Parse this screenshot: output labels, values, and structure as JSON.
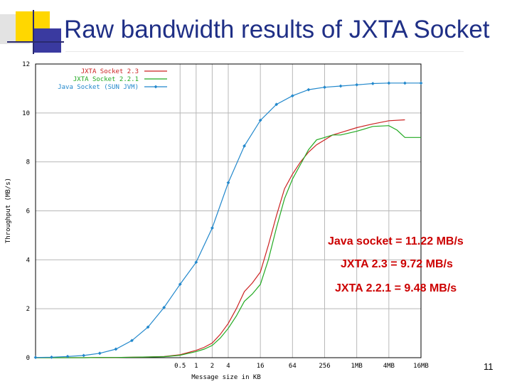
{
  "slide": {
    "title": "Raw bandwidth results of JXTA Socket",
    "page_number": "11"
  },
  "annotations": [
    "Java socket = 11.22 MB/s",
    "JXTA 2.3 = 9.72 MB/s",
    "JXTA 2.2.1 = 9.48 MB/s"
  ],
  "colors": {
    "title": "#1f2f86",
    "annotation": "#cc0000",
    "deco_yellow": "#ffd700",
    "deco_blue": "#3a3aa0",
    "deco_grey": "#d9d9d9"
  },
  "chart_data": {
    "type": "line",
    "xlabel": "Message size in KB",
    "ylabel": "Throughput (MB/s)",
    "ylim": [
      0,
      12
    ],
    "y_ticks": [
      0,
      2,
      4,
      6,
      8,
      10,
      12
    ],
    "x_ticks": [
      {
        "label": "0.5",
        "value": 0.5
      },
      {
        "label": "1",
        "value": 1
      },
      {
        "label": "2",
        "value": 2
      },
      {
        "label": "4",
        "value": 4
      },
      {
        "label": "16",
        "value": 16
      },
      {
        "label": "64",
        "value": 64
      },
      {
        "label": "256",
        "value": 256
      },
      {
        "label": "1MB",
        "value": 1024
      },
      {
        "label": "4MB",
        "value": 4096
      },
      {
        "label": "16MB",
        "value": 16384
      }
    ],
    "x_scale": "log2",
    "xlim": [
      0.000977,
      16384
    ],
    "grid": true,
    "legend_position": "top-left",
    "series": [
      {
        "name": "JXTA Socket 2.3",
        "color": "#cc2222",
        "marker": "none",
        "x": [
          0.000977,
          0.00195,
          0.0039,
          0.0078,
          0.0156,
          0.03125,
          0.0625,
          0.125,
          0.25,
          0.5,
          1,
          1.41,
          2,
          2.83,
          4,
          5.66,
          8,
          11.3,
          16,
          22.6,
          32,
          45.3,
          64,
          90.5,
          128,
          181,
          256,
          362,
          512,
          1024,
          2048,
          4096,
          8192
        ],
        "values": [
          0,
          0,
          0,
          0,
          0.01,
          0.01,
          0.02,
          0.03,
          0.05,
          0.12,
          0.3,
          0.42,
          0.6,
          0.95,
          1.4,
          2.0,
          2.7,
          3.05,
          3.5,
          4.6,
          5.8,
          6.9,
          7.5,
          8.0,
          8.4,
          8.7,
          8.9,
          9.1,
          9.2,
          9.4,
          9.55,
          9.68,
          9.72
        ]
      },
      {
        "name": "JXTA Socket 2.2.1",
        "color": "#22aa22",
        "marker": "none",
        "x": [
          0.000977,
          0.00195,
          0.0039,
          0.0078,
          0.0156,
          0.03125,
          0.0625,
          0.125,
          0.25,
          0.5,
          1,
          1.41,
          2,
          2.83,
          4,
          5.66,
          8,
          11.3,
          16,
          22.6,
          32,
          45.3,
          64,
          90.5,
          128,
          181,
          256,
          362,
          512,
          1024,
          2048,
          4096,
          5800,
          8192,
          16384
        ],
        "values": [
          0,
          0,
          0,
          0,
          0.01,
          0.01,
          0.02,
          0.03,
          0.04,
          0.1,
          0.25,
          0.35,
          0.5,
          0.8,
          1.2,
          1.7,
          2.3,
          2.6,
          3.0,
          4.0,
          5.3,
          6.5,
          7.3,
          7.9,
          8.5,
          8.9,
          9.0,
          9.1,
          9.1,
          9.25,
          9.45,
          9.48,
          9.3,
          9.0,
          9.0
        ]
      },
      {
        "name": "Java Socket (SUN JVM)",
        "color": "#2288cc",
        "marker": "diamond",
        "x": [
          0.000977,
          0.00195,
          0.0039,
          0.0078,
          0.0156,
          0.03125,
          0.0625,
          0.125,
          0.25,
          0.5,
          1,
          2,
          4,
          8,
          16,
          32,
          64,
          128,
          256,
          512,
          1024,
          2048,
          4096,
          8192,
          16384
        ],
        "values": [
          0.01,
          0.02,
          0.05,
          0.09,
          0.18,
          0.35,
          0.7,
          1.25,
          2.05,
          3.0,
          3.9,
          5.3,
          7.15,
          8.65,
          9.7,
          10.35,
          10.7,
          10.95,
          11.05,
          11.1,
          11.15,
          11.2,
          11.22,
          11.22,
          11.22
        ]
      }
    ]
  }
}
